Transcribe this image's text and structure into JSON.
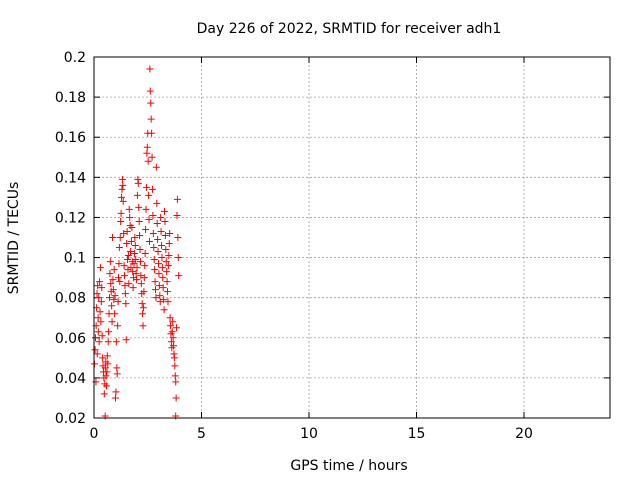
{
  "chart_data": {
    "type": "scatter",
    "title": "Day 226 of 2022, SRMTID for receiver adh1",
    "xlabel": "GPS time / hours",
    "ylabel": "SRMTID / TECUs",
    "xlim": [
      0,
      24
    ],
    "ylim": [
      0.02,
      0.2
    ],
    "grid": true,
    "marker": "+",
    "marker_color": "#ff0000",
    "x_ticks": [
      0,
      5,
      10,
      15,
      20
    ],
    "x_tick_labels": [
      "0",
      "5",
      "10",
      "15",
      "20"
    ],
    "y_ticks": [
      0.02,
      0.04,
      0.06,
      0.08,
      0.1,
      0.12,
      0.14,
      0.16,
      0.18,
      0.2
    ],
    "y_tick_labels": [
      "0.02",
      "0.04",
      "0.06",
      "0.08",
      "0.1",
      "0.12",
      "0.14",
      "0.16",
      "0.18",
      "0.2"
    ],
    "series": [
      {
        "name": "SRMTID",
        "points": [
          [
            0.02,
            0.047
          ],
          [
            0.05,
            0.054
          ],
          [
            0.07,
            0.06
          ],
          [
            0.09,
            0.038
          ],
          [
            0.1,
            0.066
          ],
          [
            0.12,
            0.075
          ],
          [
            0.14,
            0.082
          ],
          [
            0.15,
            0.052
          ],
          [
            0.17,
            0.086
          ],
          [
            0.19,
            0.07
          ],
          [
            0.2,
            0.063
          ],
          [
            0.22,
            0.08
          ],
          [
            0.24,
            0.058
          ],
          [
            0.26,
            0.088
          ],
          [
            0.28,
            0.073
          ],
          [
            0.3,
            0.095
          ],
          [
            0.32,
            0.068
          ],
          [
            0.34,
            0.078
          ],
          [
            0.36,
            0.085
          ],
          [
            0.38,
            0.061
          ],
          [
            0.4,
            0.05
          ],
          [
            0.42,
            0.046
          ],
          [
            0.44,
            0.043
          ],
          [
            0.46,
            0.04
          ],
          [
            0.48,
            0.032
          ],
          [
            0.5,
            0.037
          ],
          [
            0.52,
            0.021
          ],
          [
            0.53,
            0.045
          ],
          [
            0.55,
            0.048
          ],
          [
            0.56,
            0.041
          ],
          [
            0.58,
            0.036
          ],
          [
            0.6,
            0.043
          ],
          [
            0.62,
            0.051
          ],
          [
            0.64,
            0.047
          ],
          [
            0.66,
            0.058
          ],
          [
            0.68,
            0.063
          ],
          [
            0.7,
            0.072
          ],
          [
            0.72,
            0.08
          ],
          [
            0.74,
            0.092
          ],
          [
            0.76,
            0.098
          ],
          [
            0.78,
            0.087
          ],
          [
            0.8,
            0.083
          ],
          [
            0.82,
            0.076
          ],
          [
            0.84,
            0.068
          ],
          [
            0.86,
            0.11
          ],
          [
            0.88,
            0.089
          ],
          [
            0.9,
            0.084
          ],
          [
            0.92,
            0.079
          ],
          [
            0.94,
            0.094
          ],
          [
            0.96,
            0.072
          ],
          [
            0.98,
            0.081
          ],
          [
            1.0,
            0.03
          ],
          [
            1.02,
            0.033
          ],
          [
            1.04,
            0.058
          ],
          [
            1.06,
            0.045
          ],
          [
            1.08,
            0.042
          ],
          [
            1.1,
            0.066
          ],
          [
            1.12,
            0.078
          ],
          [
            1.14,
            0.09
          ],
          [
            1.16,
            0.097
          ],
          [
            1.18,
            0.105
          ],
          [
            1.2,
            0.088
          ],
          [
            1.22,
            0.11
          ],
          [
            1.24,
            0.118
          ],
          [
            1.26,
            0.122
          ],
          [
            1.28,
            0.13
          ],
          [
            1.3,
            0.134
          ],
          [
            1.32,
            0.139
          ],
          [
            1.34,
            0.136
          ],
          [
            1.36,
            0.128
          ],
          [
            1.38,
            0.112
          ],
          [
            1.4,
            0.096
          ],
          [
            1.42,
            0.091
          ],
          [
            1.44,
            0.086
          ],
          [
            1.46,
            0.082
          ],
          [
            1.48,
            0.077
          ],
          [
            1.5,
            0.059
          ],
          [
            1.52,
            0.107
          ],
          [
            1.54,
            0.113
          ],
          [
            1.56,
            0.099
          ],
          [
            1.58,
            0.094
          ],
          [
            1.6,
            0.101
          ],
          [
            1.62,
            0.087
          ],
          [
            1.64,
            0.124
          ],
          [
            1.66,
            0.12
          ],
          [
            1.68,
            0.116
          ],
          [
            1.7,
            0.103
          ],
          [
            1.72,
            0.095
          ],
          [
            1.74,
            0.108
          ],
          [
            1.76,
            0.115
          ],
          [
            1.78,
            0.098
          ],
          [
            1.8,
            0.093
          ],
          [
            1.82,
            0.085
          ],
          [
            1.84,
            0.09
          ],
          [
            1.86,
            0.097
          ],
          [
            1.88,
            0.102
          ],
          [
            1.9,
            0.11
          ],
          [
            1.92,
            0.106
          ],
          [
            1.94,
            0.099
          ],
          [
            1.96,
            0.092
          ],
          [
            1.98,
            0.089
          ],
          [
            2.0,
            0.095
          ],
          [
            2.02,
            0.131
          ],
          [
            2.04,
            0.139
          ],
          [
            2.06,
            0.137
          ],
          [
            2.08,
            0.125
          ],
          [
            2.1,
            0.118
          ],
          [
            2.12,
            0.111
          ],
          [
            2.14,
            0.104
          ],
          [
            2.16,
            0.098
          ],
          [
            2.18,
            0.091
          ],
          [
            2.2,
            0.087
          ],
          [
            2.22,
            0.082
          ],
          [
            2.24,
            0.077
          ],
          [
            2.26,
            0.072
          ],
          [
            2.28,
            0.066
          ],
          [
            2.3,
            0.075
          ],
          [
            2.32,
            0.083
          ],
          [
            2.34,
            0.09
          ],
          [
            2.36,
            0.096
          ],
          [
            2.38,
            0.102
          ],
          [
            2.4,
            0.114
          ],
          [
            2.42,
            0.124
          ],
          [
            2.44,
            0.135
          ],
          [
            2.46,
            0.152
          ],
          [
            2.48,
            0.155
          ],
          [
            2.5,
            0.162
          ],
          [
            2.52,
            0.148
          ],
          [
            2.54,
            0.131
          ],
          [
            2.56,
            0.119
          ],
          [
            2.58,
            0.108
          ],
          [
            2.6,
            0.194
          ],
          [
            2.62,
            0.183
          ],
          [
            2.64,
            0.177
          ],
          [
            2.66,
            0.169
          ],
          [
            2.68,
            0.162
          ],
          [
            2.7,
            0.15
          ],
          [
            2.72,
            0.134
          ],
          [
            2.74,
            0.121
          ],
          [
            2.76,
            0.112
          ],
          [
            2.78,
            0.105
          ],
          [
            2.8,
            0.099
          ],
          [
            2.82,
            0.094
          ],
          [
            2.84,
            0.088
          ],
          [
            2.86,
            0.084
          ],
          [
            2.88,
            0.08
          ],
          [
            2.9,
            0.145
          ],
          [
            2.92,
            0.127
          ],
          [
            2.94,
            0.117
          ],
          [
            2.96,
            0.109
          ],
          [
            2.98,
            0.103
          ],
          [
            3.0,
            0.097
          ],
          [
            3.02,
            0.092
          ],
          [
            3.04,
            0.086
          ],
          [
            3.06,
            0.081
          ],
          [
            3.08,
            0.078
          ],
          [
            3.1,
            0.12
          ],
          [
            3.12,
            0.113
          ],
          [
            3.14,
            0.106
          ],
          [
            3.16,
            0.1
          ],
          [
            3.18,
            0.095
          ],
          [
            3.2,
            0.09
          ],
          [
            3.22,
            0.085
          ],
          [
            3.24,
            0.079
          ],
          [
            3.26,
            0.074
          ],
          [
            3.28,
            0.123
          ],
          [
            3.3,
            0.118
          ],
          [
            3.32,
            0.111
          ],
          [
            3.34,
            0.104
          ],
          [
            3.36,
            0.098
          ],
          [
            3.38,
            0.093
          ],
          [
            3.4,
            0.088
          ],
          [
            3.42,
            0.083
          ],
          [
            3.44,
            0.078
          ],
          [
            3.46,
            0.096
          ],
          [
            3.48,
            0.101
          ],
          [
            3.5,
            0.107
          ],
          [
            3.52,
            0.112
          ],
          [
            3.54,
            0.07
          ],
          [
            3.56,
            0.066
          ],
          [
            3.58,
            0.062
          ],
          [
            3.6,
            0.058
          ],
          [
            3.62,
            0.055
          ],
          [
            3.64,
            0.063
          ],
          [
            3.66,
            0.068
          ],
          [
            3.68,
            0.06
          ],
          [
            3.7,
            0.056
          ],
          [
            3.72,
            0.052
          ],
          [
            3.74,
            0.05
          ],
          [
            3.76,
            0.046
          ],
          [
            3.78,
            0.041
          ],
          [
            3.8,
            0.038
          ],
          [
            3.8,
            0.021
          ],
          [
            3.82,
            0.03
          ],
          [
            3.84,
            0.065
          ],
          [
            3.86,
            0.121
          ],
          [
            3.88,
            0.129
          ],
          [
            3.9,
            0.11
          ],
          [
            3.92,
            0.1
          ],
          [
            3.94,
            0.091
          ]
        ]
      }
    ]
  }
}
